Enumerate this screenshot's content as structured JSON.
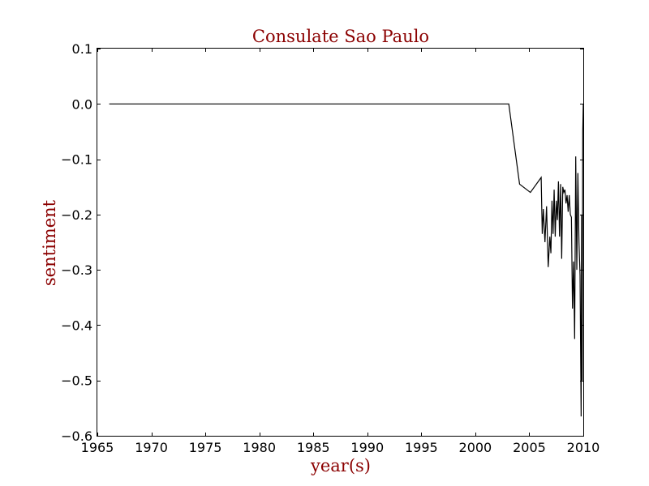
{
  "chart_data": {
    "type": "line",
    "title": "Consulate Sao Paulo",
    "xlabel": "year(s)",
    "ylabel": "sentiment",
    "xlim": [
      1965,
      2010
    ],
    "ylim": [
      -0.6,
      0.1
    ],
    "xticks": [
      1965,
      1970,
      1975,
      1980,
      1985,
      1990,
      1995,
      2000,
      2005,
      2010
    ],
    "yticks": [
      0.1,
      0.0,
      -0.1,
      -0.2,
      -0.3,
      -0.4,
      -0.5,
      -0.6
    ],
    "xtick_labels": [
      "1965",
      "1970",
      "1975",
      "1980",
      "1985",
      "1990",
      "1995",
      "2000",
      "2005",
      "2010"
    ],
    "ytick_labels": [
      "0.1",
      "0.0",
      "−0.1",
      "−0.2",
      "−0.3",
      "−0.4",
      "−0.5",
      "−0.6"
    ],
    "grid": false,
    "legend": "none",
    "line_color": "#000000",
    "series": [
      {
        "x": [
          1966.1,
          2003.1,
          2004.1,
          2005.1,
          2006.1,
          2006.2,
          2006.3,
          2006.45,
          2006.6,
          2006.75,
          2006.9,
          2007.0,
          2007.1,
          2007.2,
          2007.3,
          2007.4,
          2007.5,
          2007.6,
          2007.7,
          2007.8,
          2007.9,
          2008.0,
          2008.1,
          2008.2,
          2008.3,
          2008.4,
          2008.5,
          2008.6,
          2008.7,
          2008.8,
          2008.9,
          2009.0,
          2009.1,
          2009.2,
          2009.3,
          2009.4,
          2009.5,
          2009.6,
          2009.7,
          2009.8,
          2009.85,
          2009.9,
          2009.95,
          2010.0
        ],
        "y": [
          0.0,
          0.0,
          -0.145,
          -0.16,
          -0.133,
          -0.235,
          -0.19,
          -0.25,
          -0.185,
          -0.295,
          -0.24,
          -0.27,
          -0.175,
          -0.235,
          -0.155,
          -0.24,
          -0.175,
          -0.21,
          -0.14,
          -0.24,
          -0.145,
          -0.28,
          -0.15,
          -0.16,
          -0.155,
          -0.18,
          -0.165,
          -0.195,
          -0.165,
          -0.2,
          -0.205,
          -0.37,
          -0.285,
          -0.425,
          -0.095,
          -0.3,
          -0.125,
          -0.25,
          -0.31,
          -0.565,
          -0.2,
          -0.5,
          -0.05,
          0.0
        ]
      }
    ]
  }
}
